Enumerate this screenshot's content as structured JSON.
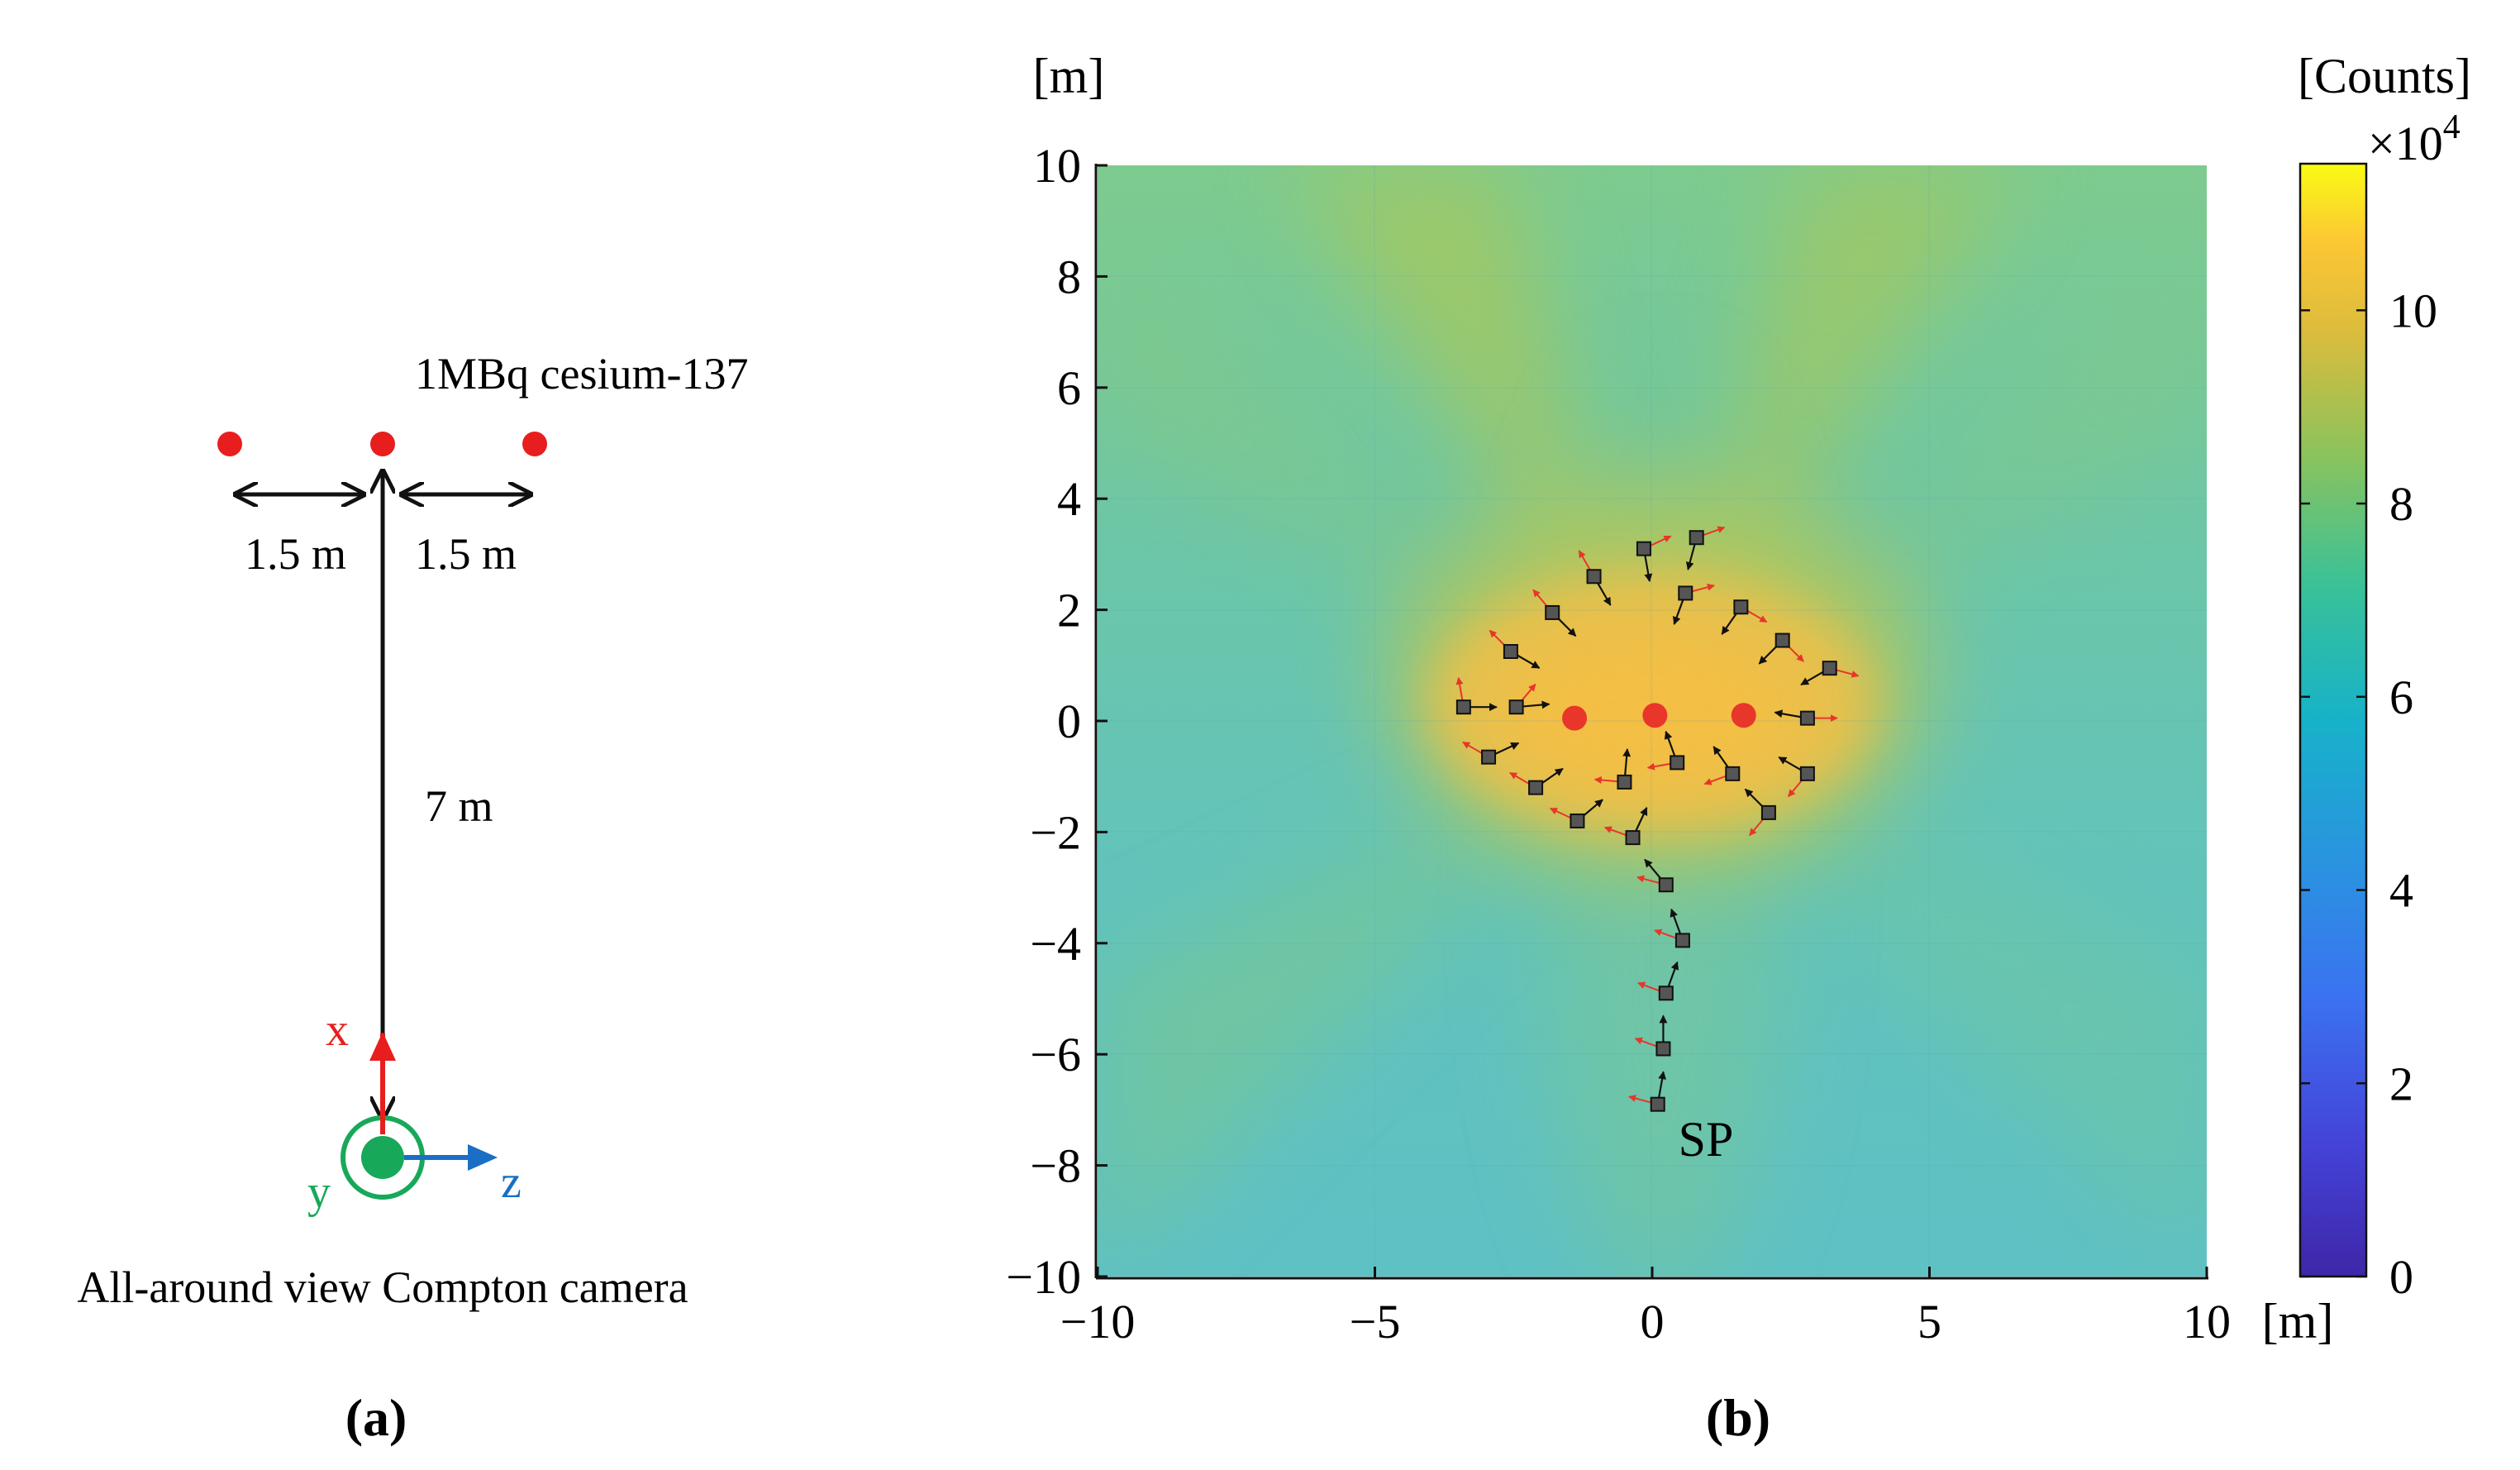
{
  "panel_a": {
    "source_label": "1MBq cesium-137",
    "dist_left": "1.5 m",
    "dist_right": "1.5 m",
    "dist_main": "7 m",
    "axis_x": "x",
    "axis_y": "y",
    "axis_z": "z",
    "camera_label": "All-around view Compton camera",
    "caption": "(a)",
    "colors": {
      "source": "#e81e1e",
      "x_axis": "#e81e1e",
      "y_axis": "#18a85a",
      "z_axis": "#1a6fc4"
    }
  },
  "panel_b": {
    "caption": "(b)",
    "sp_label": "SP",
    "colors": {
      "source": "#e8362a",
      "camera_fill": "#555555",
      "arrow_red": "#e8362a",
      "arrow_black": "#111111"
    }
  },
  "chart_data": {
    "type": "heatmap",
    "xlabel": "[m]",
    "ylabel": "[m]",
    "xlim": [
      -10,
      10
    ],
    "ylim": [
      -10,
      10
    ],
    "x_ticks": [
      -10,
      -5,
      0,
      5,
      10
    ],
    "y_ticks": [
      -10,
      -8,
      -6,
      -4,
      -2,
      0,
      2,
      4,
      6,
      8,
      10
    ],
    "colorbar": {
      "label": "[Counts]",
      "scale": "×10",
      "scale_exp": "4",
      "range": [
        0,
        11.5
      ],
      "ticks": [
        0,
        2,
        4,
        6,
        8,
        10
      ],
      "colormap": "parula"
    },
    "sources": [
      {
        "x": -1.4,
        "y": 0.05
      },
      {
        "x": 0.05,
        "y": 0.1
      },
      {
        "x": 1.65,
        "y": 0.1
      }
    ],
    "measurement_points": [
      {
        "x": 0.1,
        "y": -6.9,
        "red": 165,
        "black": 80
      },
      {
        "x": 0.2,
        "y": -5.9,
        "red": 160,
        "black": 90
      },
      {
        "x": 0.25,
        "y": -4.9,
        "red": 160,
        "black": 70
      },
      {
        "x": 0.55,
        "y": -3.95,
        "red": 160,
        "black": 110
      },
      {
        "x": 0.25,
        "y": -2.95,
        "red": 165,
        "black": 130
      },
      {
        "x": -0.35,
        "y": -2.1,
        "red": 160,
        "black": 65
      },
      {
        "x": -1.35,
        "y": -1.8,
        "red": 155,
        "black": 40
      },
      {
        "x": -2.1,
        "y": -1.2,
        "red": 150,
        "black": 35
      },
      {
        "x": -2.95,
        "y": -0.65,
        "red": 150,
        "black": 25
      },
      {
        "x": -0.5,
        "y": -1.1,
        "red": 175,
        "black": 85
      },
      {
        "x": 0.45,
        "y": -0.75,
        "red": 190,
        "black": 110
      },
      {
        "x": 1.45,
        "y": -0.95,
        "red": 200,
        "black": 125
      },
      {
        "x": 2.1,
        "y": -1.65,
        "red": 230,
        "black": 135
      },
      {
        "x": 2.8,
        "y": -0.95,
        "red": 230,
        "black": 150
      },
      {
        "x": 2.8,
        "y": 0.05,
        "red": 0,
        "black": 170
      },
      {
        "x": 3.2,
        "y": 0.95,
        "red": 345,
        "black": 210
      },
      {
        "x": 2.35,
        "y": 1.45,
        "red": 315,
        "black": 225
      },
      {
        "x": 1.6,
        "y": 2.05,
        "red": 330,
        "black": 235
      },
      {
        "x": 0.6,
        "y": 2.3,
        "red": 15,
        "black": 250
      },
      {
        "x": -0.15,
        "y": 3.1,
        "red": 25,
        "black": 280
      },
      {
        "x": 0.8,
        "y": 3.3,
        "red": 20,
        "black": 255
      },
      {
        "x": -1.05,
        "y": 2.6,
        "red": 120,
        "black": 300
      },
      {
        "x": -1.8,
        "y": 1.95,
        "red": 130,
        "black": 315
      },
      {
        "x": -2.55,
        "y": 1.25,
        "red": 135,
        "black": 330
      },
      {
        "x": -3.4,
        "y": 0.25,
        "red": 100,
        "black": 0
      },
      {
        "x": -2.45,
        "y": 0.25,
        "red": 50,
        "black": 5
      }
    ]
  }
}
